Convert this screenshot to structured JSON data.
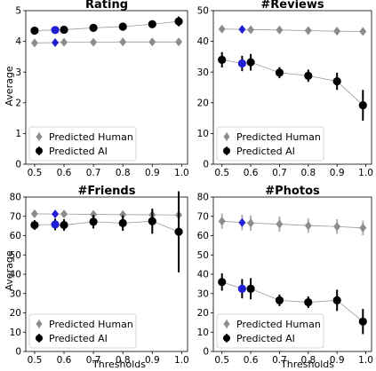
{
  "figure": {
    "ylabel": "Average",
    "xlabel": "Thresholds",
    "colors": {
      "human": "#8c8c8c",
      "ai": "#000000",
      "highlight": "#1f1fd6",
      "error_human": "#b0b0b0",
      "connector": "#9a9a9a",
      "legend_border": "#cccccc",
      "axes": "#000000"
    }
  },
  "chart_data": [
    {
      "type": "scatter",
      "title": "Rating",
      "xlim": [
        0.47,
        1.02
      ],
      "ylim": [
        0,
        5
      ],
      "xticks": [
        "0.5",
        "0.6",
        "0.7",
        "0.8",
        "0.9",
        "1.0"
      ],
      "yticks": [
        "0",
        "1",
        "2",
        "3",
        "4",
        "5"
      ],
      "legend_position": "lower-left",
      "highlight_x": 0.57,
      "series": [
        {
          "name": "Predicted Human",
          "marker": "diamond",
          "x": [
            0.5,
            0.57,
            0.6,
            0.7,
            0.8,
            0.9,
            0.99
          ],
          "y": [
            3.95,
            3.96,
            3.97,
            3.97,
            3.98,
            3.98,
            3.98
          ],
          "err": [
            0,
            0,
            0,
            0,
            0,
            0,
            0
          ]
        },
        {
          "name": "Predicted AI",
          "marker": "circle",
          "x": [
            0.5,
            0.57,
            0.6,
            0.7,
            0.8,
            0.9,
            0.99
          ],
          "y": [
            4.35,
            4.37,
            4.38,
            4.44,
            4.48,
            4.56,
            4.65
          ],
          "err": [
            0.05,
            0.05,
            0.05,
            0.06,
            0.07,
            0.1,
            0.16
          ]
        }
      ]
    },
    {
      "type": "scatter",
      "title": "#Reviews",
      "xlim": [
        0.47,
        1.02
      ],
      "ylim": [
        0,
        50
      ],
      "xticks": [
        "0.5",
        "0.6",
        "0.7",
        "0.8",
        "0.9",
        "1.0"
      ],
      "yticks": [
        "0",
        "10",
        "20",
        "30",
        "40",
        "50"
      ],
      "legend_position": "lower-left",
      "highlight_x": 0.57,
      "series": [
        {
          "name": "Predicted Human",
          "marker": "diamond",
          "x": [
            0.5,
            0.57,
            0.6,
            0.7,
            0.8,
            0.9,
            0.99
          ],
          "y": [
            44.0,
            43.9,
            43.8,
            43.7,
            43.5,
            43.3,
            43.2
          ],
          "err": [
            0.4,
            0.4,
            0.4,
            0.4,
            0.4,
            0.4,
            0.4
          ]
        },
        {
          "name": "Predicted AI",
          "marker": "circle",
          "x": [
            0.5,
            0.57,
            0.6,
            0.7,
            0.8,
            0.9,
            0.99
          ],
          "y": [
            34.0,
            32.8,
            33.2,
            29.8,
            28.8,
            27.0,
            19.2
          ],
          "err": [
            2.5,
            2.5,
            2.7,
            1.8,
            2.0,
            2.8,
            5.0
          ]
        }
      ]
    },
    {
      "type": "scatter",
      "title": "#Friends",
      "xlim": [
        0.47,
        1.02
      ],
      "ylim": [
        0,
        80
      ],
      "xticks": [
        "0.5",
        "0.6",
        "0.7",
        "0.8",
        "0.9",
        "1.0"
      ],
      "yticks": [
        "0",
        "10",
        "20",
        "30",
        "40",
        "50",
        "60",
        "70",
        "80"
      ],
      "legend_position": "lower-left",
      "highlight_x": 0.57,
      "series": [
        {
          "name": "Predicted Human",
          "marker": "diamond",
          "x": [
            0.5,
            0.57,
            0.6,
            0.7,
            0.8,
            0.9,
            0.99
          ],
          "y": [
            71.3,
            71.2,
            71.2,
            71.0,
            70.9,
            70.8,
            70.7
          ],
          "err": [
            1.0,
            1.0,
            1.0,
            1.0,
            1.0,
            1.2,
            1.6
          ]
        },
        {
          "name": "Predicted AI",
          "marker": "circle",
          "x": [
            0.5,
            0.57,
            0.6,
            0.7,
            0.8,
            0.9,
            0.99
          ],
          "y": [
            65.5,
            65.8,
            65.5,
            67.2,
            66.5,
            67.5,
            62.0
          ],
          "err": [
            2.5,
            3.0,
            3.0,
            3.5,
            4.0,
            6.5,
            21.0
          ]
        }
      ]
    },
    {
      "type": "scatter",
      "title": "#Photos",
      "xlim": [
        0.47,
        1.02
      ],
      "ylim": [
        0,
        80
      ],
      "xticks": [
        "0.5",
        "0.6",
        "0.7",
        "0.8",
        "0.9",
        "1.0"
      ],
      "yticks": [
        "0",
        "10",
        "20",
        "30",
        "40",
        "50",
        "60",
        "70",
        "80"
      ],
      "legend_position": "lower-left",
      "highlight_x": 0.57,
      "series": [
        {
          "name": "Predicted Human",
          "marker": "diamond",
          "x": [
            0.5,
            0.57,
            0.6,
            0.7,
            0.8,
            0.9,
            0.99
          ],
          "y": [
            67.5,
            66.8,
            66.5,
            66.0,
            65.2,
            64.7,
            64.0
          ],
          "err": [
            4.0,
            4.0,
            4.0,
            4.0,
            3.8,
            3.8,
            3.8
          ]
        },
        {
          "name": "Predicted AI",
          "marker": "circle",
          "x": [
            0.5,
            0.57,
            0.6,
            0.7,
            0.8,
            0.9,
            0.99
          ],
          "y": [
            36.0,
            32.5,
            32.5,
            26.5,
            25.5,
            26.5,
            15.5
          ],
          "err": [
            4.5,
            5.0,
            5.5,
            3.0,
            3.0,
            5.5,
            6.5
          ]
        }
      ]
    }
  ]
}
